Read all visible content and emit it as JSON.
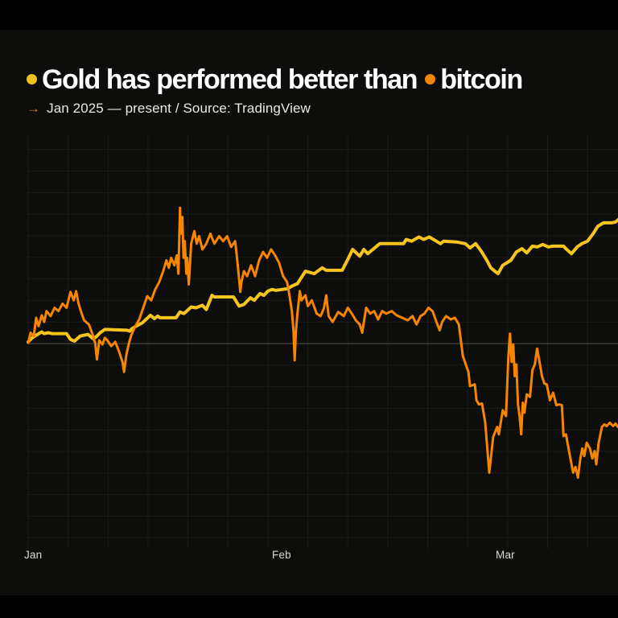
{
  "page": {
    "background": "#000000",
    "card_background": "#0d0d0b"
  },
  "header": {
    "title": {
      "full": "Gold has performed better than bitcoin",
      "part1": "Gold has performed better than",
      "part2": "bitcoin",
      "gold_dot_color": "#f0c11e",
      "bitcoin_dot_color": "#f28705"
    },
    "subtitle": {
      "arrow": "→",
      "text": "Jan 2025 — present / Source: TradingView"
    }
  },
  "chart_data": {
    "type": "line",
    "title": "Gold has performed better than bitcoin",
    "period": "Jan 2025 — present",
    "source": "TradingView",
    "x_unit": "days since Jan 1 2025",
    "y_unit": "percent change since Jan 1 2025",
    "x_tick_labels": [
      "Jan",
      "Feb",
      "Mar"
    ],
    "x_tick_days": [
      0,
      31,
      59
    ],
    "xlim_days": [
      0,
      74
    ],
    "ylim": [
      -25,
      25
    ],
    "baseline_value": 0,
    "grid": true,
    "legend_position": "in-title",
    "series": [
      {
        "name": "Gold",
        "color": "#f5c51d",
        "stroke_width": 4,
        "points": [
          [
            0,
            0.2
          ],
          [
            0.5,
            0.7
          ],
          [
            1,
            1.0
          ],
          [
            1.7,
            1.4
          ],
          [
            2,
            1.2
          ],
          [
            2.5,
            1.3
          ],
          [
            3,
            1.2
          ],
          [
            4.8,
            1.2
          ],
          [
            5.3,
            0.5
          ],
          [
            5.8,
            0.3
          ],
          [
            6.5,
            0.9
          ],
          [
            7,
            1.0
          ],
          [
            7.5,
            1.1
          ],
          [
            8.1,
            0.6
          ],
          [
            8.5,
            0.8
          ],
          [
            9,
            1.3
          ],
          [
            9.6,
            1.7
          ],
          [
            12.4,
            1.6
          ],
          [
            12.7,
            1.5
          ],
          [
            13,
            1.8
          ],
          [
            13.5,
            2.1
          ],
          [
            14.3,
            2.5
          ],
          [
            15.3,
            3.4
          ],
          [
            15.8,
            3.0
          ],
          [
            16.2,
            3.3
          ],
          [
            16.5,
            3.1
          ],
          [
            18.5,
            3.1
          ],
          [
            19,
            3.8
          ],
          [
            19.5,
            3.6
          ],
          [
            20.4,
            4.4
          ],
          [
            21,
            4.3
          ],
          [
            21.8,
            4.6
          ],
          [
            22.3,
            4.1
          ],
          [
            23,
            5.8
          ],
          [
            23.3,
            5.6
          ],
          [
            25.7,
            5.6
          ],
          [
            26.4,
            4.5
          ],
          [
            27,
            4.7
          ],
          [
            27.8,
            5.5
          ],
          [
            28.3,
            5.2
          ],
          [
            29,
            6.0
          ],
          [
            29.5,
            5.8
          ],
          [
            30,
            6.3
          ],
          [
            30.5,
            6.5
          ],
          [
            31,
            6.4
          ],
          [
            31.8,
            6.5
          ],
          [
            32.5,
            6.6
          ],
          [
            33,
            6.9
          ],
          [
            33.7,
            7.2
          ],
          [
            34.7,
            8.7
          ],
          [
            35.8,
            8.4
          ],
          [
            36.8,
            9.1
          ],
          [
            37.3,
            8.8
          ],
          [
            39.3,
            8.8
          ],
          [
            40.1,
            10.3
          ],
          [
            40.6,
            11.3
          ],
          [
            41.5,
            10.5
          ],
          [
            42,
            11.3
          ],
          [
            42.5,
            10.8
          ],
          [
            43.5,
            11.6
          ],
          [
            44,
            12.0
          ],
          [
            47,
            12.0
          ],
          [
            47.3,
            12.5
          ],
          [
            48,
            12.3
          ],
          [
            48.9,
            12.8
          ],
          [
            49.5,
            12.5
          ],
          [
            50.2,
            12.8
          ],
          [
            51.6,
            12.0
          ],
          [
            52,
            12.3
          ],
          [
            53.6,
            12.2
          ],
          [
            54.7,
            12.0
          ],
          [
            55.3,
            11.5
          ],
          [
            56,
            12.0
          ],
          [
            56.7,
            11.1
          ],
          [
            57.4,
            10.0
          ],
          [
            57.9,
            9.1
          ],
          [
            58.4,
            8.7
          ],
          [
            58.8,
            8.4
          ],
          [
            59.4,
            9.4
          ],
          [
            60.4,
            10.0
          ],
          [
            61.1,
            11.0
          ],
          [
            61.8,
            11.4
          ],
          [
            62.4,
            10.9
          ],
          [
            63.1,
            11.7
          ],
          [
            63.7,
            11.6
          ],
          [
            64.4,
            11.9
          ],
          [
            65.1,
            11.6
          ],
          [
            65.6,
            11.7
          ],
          [
            67,
            11.7
          ],
          [
            67.4,
            11.3
          ],
          [
            68,
            10.8
          ],
          [
            68.7,
            11.6
          ],
          [
            69.3,
            12.0
          ],
          [
            70,
            12.3
          ],
          [
            70.7,
            13.2
          ],
          [
            71.3,
            14.1
          ],
          [
            72,
            14.5
          ],
          [
            73,
            14.5
          ],
          [
            73.5,
            14.6
          ],
          [
            74,
            15.0
          ]
        ]
      },
      {
        "name": "Bitcoin",
        "color": "#f78500",
        "stroke_width": 3,
        "points": [
          [
            0,
            0.1
          ],
          [
            0.3,
            1.3
          ],
          [
            0.7,
            0.9
          ],
          [
            1,
            3.1
          ],
          [
            1.3,
            2.1
          ],
          [
            1.7,
            3.4
          ],
          [
            2,
            2.6
          ],
          [
            2.3,
            3.9
          ],
          [
            2.8,
            3.3
          ],
          [
            3.3,
            4.3
          ],
          [
            3.8,
            3.9
          ],
          [
            4.3,
            4.8
          ],
          [
            4.8,
            4.3
          ],
          [
            5.3,
            6.2
          ],
          [
            5.7,
            5.2
          ],
          [
            6,
            6.3
          ],
          [
            6.3,
            4.8
          ],
          [
            6.7,
            3.6
          ],
          [
            7,
            2.8
          ],
          [
            7.6,
            2.3
          ],
          [
            8.1,
            1.0
          ],
          [
            8.4,
            0.0
          ],
          [
            8.6,
            -1.9
          ],
          [
            8.9,
            0.4
          ],
          [
            9.3,
            -0.1
          ],
          [
            9.6,
            0.7
          ],
          [
            9.9,
            0.4
          ],
          [
            10.4,
            -0.3
          ],
          [
            10.9,
            0.2
          ],
          [
            11.4,
            -1.0
          ],
          [
            11.8,
            -2.2
          ],
          [
            12,
            -3.4
          ],
          [
            12.3,
            -1.3
          ],
          [
            12.6,
            0.0
          ],
          [
            12.9,
            1.0
          ],
          [
            13.4,
            2.1
          ],
          [
            13.9,
            2.9
          ],
          [
            14.4,
            4.3
          ],
          [
            14.9,
            5.7
          ],
          [
            15.4,
            5.2
          ],
          [
            15.9,
            6.5
          ],
          [
            16.4,
            7.4
          ],
          [
            16.9,
            8.7
          ],
          [
            17.3,
            10.0
          ],
          [
            17.6,
            9.1
          ],
          [
            17.9,
            10.3
          ],
          [
            18.3,
            9.4
          ],
          [
            18.6,
            10.6
          ],
          [
            18.8,
            8.4
          ],
          [
            19,
            16.3
          ],
          [
            19.1,
            13.2
          ],
          [
            19.3,
            15.2
          ],
          [
            19.45,
            10.3
          ],
          [
            19.6,
            12.3
          ],
          [
            19.8,
            8.4
          ],
          [
            19.9,
            10.3
          ],
          [
            20.1,
            7.1
          ],
          [
            20.4,
            12.0
          ],
          [
            20.8,
            13.5
          ],
          [
            21.1,
            12.0
          ],
          [
            21.4,
            12.9
          ],
          [
            21.8,
            11.3
          ],
          [
            22.3,
            12.0
          ],
          [
            22.8,
            13.2
          ],
          [
            23.3,
            12.0
          ],
          [
            23.9,
            12.9
          ],
          [
            24.4,
            12.3
          ],
          [
            24.9,
            12.9
          ],
          [
            25.4,
            11.6
          ],
          [
            25.9,
            12.3
          ],
          [
            26.1,
            10.6
          ],
          [
            26.4,
            7.7
          ],
          [
            26.55,
            6.2
          ],
          [
            26.7,
            7.4
          ],
          [
            27,
            8.7
          ],
          [
            27.4,
            8.1
          ],
          [
            27.9,
            9.4
          ],
          [
            28.4,
            8.1
          ],
          [
            28.9,
            10.0
          ],
          [
            29.4,
            11.0
          ],
          [
            29.9,
            10.3
          ],
          [
            30.4,
            11.3
          ],
          [
            30.9,
            10.6
          ],
          [
            31.4,
            9.7
          ],
          [
            31.9,
            8.1
          ],
          [
            32.4,
            7.4
          ],
          [
            32.7,
            5.8
          ],
          [
            33,
            3.9
          ],
          [
            33.2,
            1.6
          ],
          [
            33.35,
            -2.0
          ],
          [
            33.5,
            1.4
          ],
          [
            33.7,
            3.6
          ],
          [
            34,
            6.3
          ],
          [
            34.2,
            5.2
          ],
          [
            34.7,
            5.8
          ],
          [
            35,
            4.5
          ],
          [
            35.5,
            5.2
          ],
          [
            36.1,
            3.6
          ],
          [
            36.6,
            3.3
          ],
          [
            37,
            4.2
          ],
          [
            37.3,
            5.8
          ],
          [
            37.6,
            3.3
          ],
          [
            38.1,
            2.6
          ],
          [
            38.8,
            3.8
          ],
          [
            39.5,
            3.3
          ],
          [
            40,
            4.3
          ],
          [
            40.5,
            3.6
          ],
          [
            41,
            2.8
          ],
          [
            41.5,
            2.3
          ],
          [
            41.8,
            1.3
          ],
          [
            42.3,
            4.3
          ],
          [
            42.8,
            3.6
          ],
          [
            43.3,
            3.9
          ],
          [
            43.8,
            2.9
          ],
          [
            44.3,
            3.9
          ],
          [
            44.8,
            3.6
          ],
          [
            45.5,
            3.9
          ],
          [
            46.1,
            3.4
          ],
          [
            46.8,
            3.1
          ],
          [
            47.5,
            2.8
          ],
          [
            48.1,
            3.3
          ],
          [
            48.6,
            2.3
          ],
          [
            49.1,
            3.3
          ],
          [
            49.6,
            3.6
          ],
          [
            50.1,
            4.3
          ],
          [
            50.6,
            3.9
          ],
          [
            51.1,
            2.6
          ],
          [
            51.5,
            1.6
          ],
          [
            51.8,
            2.6
          ],
          [
            52.3,
            3.3
          ],
          [
            52.9,
            2.9
          ],
          [
            53.4,
            3.1
          ],
          [
            53.9,
            2.3
          ],
          [
            54.4,
            -1.5
          ],
          [
            55.1,
            -3.4
          ],
          [
            55.3,
            -5.1
          ],
          [
            55.9,
            -4.9
          ],
          [
            56.1,
            -6.8
          ],
          [
            56.4,
            -7.3
          ],
          [
            56.8,
            -7.2
          ],
          [
            57.2,
            -9.5
          ],
          [
            57.7,
            -15.5
          ],
          [
            58.2,
            -11.2
          ],
          [
            58.7,
            -10.0
          ],
          [
            58.9,
            -10.9
          ],
          [
            59.4,
            -8.0
          ],
          [
            59.8,
            -8.7
          ],
          [
            60.1,
            -1.5
          ],
          [
            60.3,
            1.2
          ],
          [
            60.5,
            -2.2
          ],
          [
            60.7,
            -0.1
          ],
          [
            60.9,
            -3.9
          ],
          [
            61.1,
            -2.5
          ],
          [
            61.3,
            -7.3
          ],
          [
            61.5,
            -8.7
          ],
          [
            61.7,
            -10.9
          ],
          [
            61.9,
            -7.1
          ],
          [
            62.1,
            -8.3
          ],
          [
            62.4,
            -6.1
          ],
          [
            62.8,
            -6.4
          ],
          [
            63.1,
            -3.2
          ],
          [
            63.4,
            -2.5
          ],
          [
            63.7,
            -0.6
          ],
          [
            64,
            -2.2
          ],
          [
            64.3,
            -3.9
          ],
          [
            64.6,
            -4.8
          ],
          [
            64.9,
            -4.9
          ],
          [
            65.3,
            -6.8
          ],
          [
            65.7,
            -5.9
          ],
          [
            66.1,
            -7.4
          ],
          [
            66.4,
            -7.3
          ],
          [
            66.8,
            -7.4
          ],
          [
            67,
            -11.1
          ],
          [
            67.3,
            -10.9
          ],
          [
            67.7,
            -13.0
          ],
          [
            68.2,
            -15.5
          ],
          [
            68.5,
            -14.8
          ],
          [
            68.8,
            -16.1
          ],
          [
            69.1,
            -13.8
          ],
          [
            69.35,
            -12.6
          ],
          [
            69.6,
            -13.5
          ],
          [
            69.9,
            -11.9
          ],
          [
            70.3,
            -12.6
          ],
          [
            70.6,
            -13.8
          ],
          [
            70.9,
            -12.9
          ],
          [
            71.1,
            -14.5
          ],
          [
            71.4,
            -11.9
          ],
          [
            71.8,
            -10.0
          ],
          [
            72.1,
            -9.7
          ],
          [
            72.4,
            -9.9
          ],
          [
            72.8,
            -9.5
          ],
          [
            73.2,
            -9.9
          ],
          [
            73.5,
            -9.6
          ],
          [
            73.8,
            -10.0
          ]
        ]
      }
    ]
  }
}
